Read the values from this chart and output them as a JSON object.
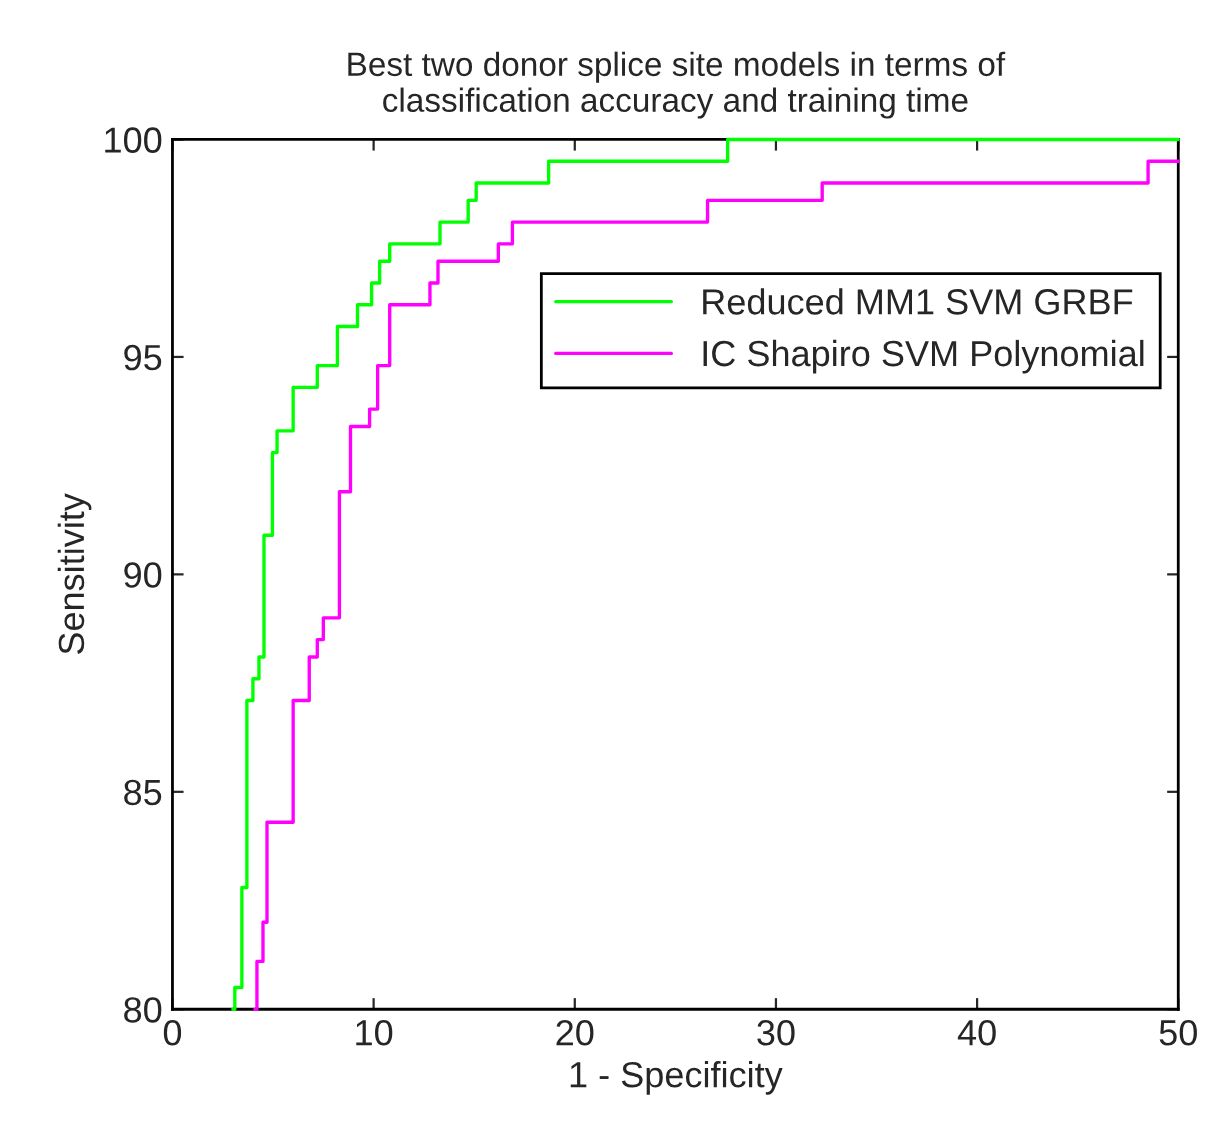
{
  "chart_data": {
    "type": "step",
    "title": "Best two donor splice site models in terms of\nclassification accuracy and training time",
    "xlabel": "1 - Specificity",
    "ylabel": "Sensitivity",
    "xlim": [
      0,
      50
    ],
    "xticks": [
      0,
      10,
      20,
      30,
      40,
      50
    ],
    "ylim": [
      80,
      100
    ],
    "yticks": [
      80,
      85,
      90,
      95,
      100
    ],
    "grid": false,
    "legend": "right",
    "series": [
      {
        "name": "Reduced MM1 SVM GRBF",
        "color": "#00ff00",
        "x": [
          3.0,
          3.1,
          3.45,
          3.7,
          4.0,
          4.3,
          4.55,
          4.97,
          5.2,
          6.0,
          7.2,
          8.2,
          9.2,
          9.9,
          10.3,
          10.8,
          13.3,
          14.7,
          15.1,
          18.7,
          27.6,
          50
        ],
        "values": [
          80,
          80.5,
          82.8,
          87.1,
          87.6,
          88.1,
          90.9,
          92.8,
          93.3,
          94.3,
          94.8,
          95.7,
          96.2,
          96.7,
          97.2,
          97.6,
          98.1,
          98.6,
          99.0,
          99.5,
          100,
          100
        ]
      },
      {
        "name": "IC Shapiro SVM Polynomial",
        "color": "#ff00ff",
        "x": [
          4.1,
          4.2,
          4.5,
          4.7,
          6.0,
          6.8,
          7.2,
          7.5,
          8.3,
          8.85,
          9.8,
          10.2,
          10.8,
          12.8,
          13.2,
          16.2,
          16.9,
          26.6,
          32.3,
          48.5,
          50
        ],
        "values": [
          80,
          81.1,
          82.0,
          84.3,
          87.1,
          88.1,
          88.5,
          89.0,
          91.9,
          93.4,
          93.8,
          94.8,
          96.2,
          96.7,
          97.2,
          97.6,
          98.1,
          98.6,
          99.0,
          99.5,
          99.5
        ]
      }
    ]
  }
}
